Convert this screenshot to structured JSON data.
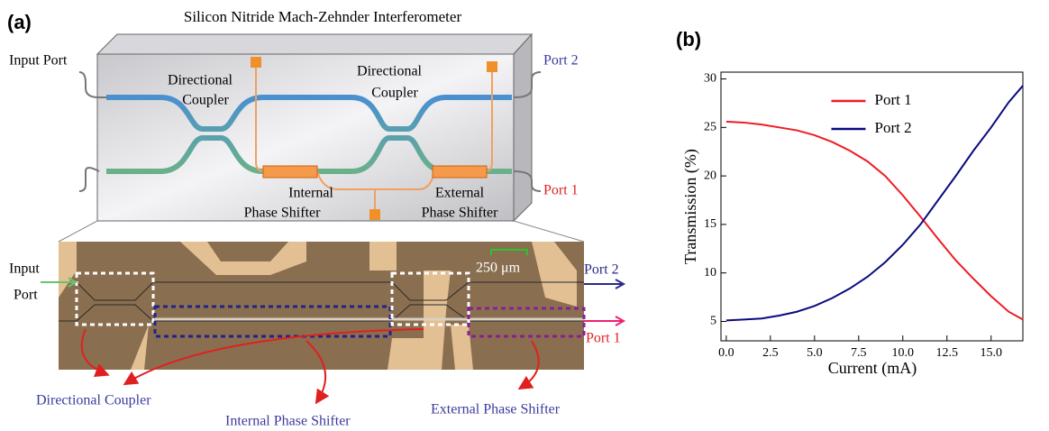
{
  "panel_a": {
    "label": "(a)",
    "title": "Silicon Nitride Mach-Zehnder Interferometer",
    "schematic": {
      "input_port": "Input Port",
      "port_2": "Port 2",
      "port_1": "Port 1",
      "couplers": [
        [
          "Directional",
          "Coupler"
        ],
        [
          "Directional",
          "Coupler"
        ]
      ],
      "internal_shifter": [
        "Internal",
        "Phase Shifter"
      ],
      "external_shifter": [
        "External",
        "Phase Shifter"
      ]
    },
    "micrograph": {
      "input_port": [
        "Input",
        "Port"
      ],
      "port_2": "Port 2",
      "port_1": "Port 1",
      "scale_bar": "250 μm",
      "callouts": [
        "Directional Coupler",
        "Internal Phase Shifter",
        "External Phase Shifter"
      ]
    }
  },
  "chart_data": {
    "type": "line",
    "panel_label": "(b)",
    "xlabel": "Current (mA)",
    "ylabel": "Transmission (%)",
    "x": [
      0,
      1,
      2,
      3,
      4,
      5,
      6,
      7,
      8,
      9,
      10,
      11,
      12,
      13,
      14,
      15,
      16,
      16.8
    ],
    "series": [
      {
        "name": "Port 1",
        "color": "#ee1c24",
        "values": [
          25.6,
          25.5,
          25.3,
          25.0,
          24.7,
          24.2,
          23.5,
          22.6,
          21.5,
          20.0,
          18.0,
          15.8,
          13.5,
          11.3,
          9.4,
          7.6,
          6.0,
          5.2
        ]
      },
      {
        "name": "Port 2",
        "color": "#0a0a80",
        "values": [
          5.1,
          5.2,
          5.3,
          5.6,
          6.0,
          6.6,
          7.4,
          8.4,
          9.6,
          11.1,
          12.9,
          15.0,
          17.5,
          20.0,
          22.6,
          25.0,
          27.6,
          29.3
        ]
      }
    ],
    "xlim": [
      -0.3,
      16.8
    ],
    "ylim": [
      3.0,
      30.7
    ],
    "xticks": [
      {
        "value": 0,
        "label": "0.0"
      },
      {
        "value": 2.5,
        "label": "2.5"
      },
      {
        "value": 5,
        "label": "5.0"
      },
      {
        "value": 7.5,
        "label": "7.5"
      },
      {
        "value": 10,
        "label": "10.0"
      },
      {
        "value": 12.5,
        "label": "12.5"
      },
      {
        "value": 15,
        "label": "15.0"
      }
    ],
    "yticks": [
      5,
      10,
      15,
      20,
      25,
      30
    ],
    "grid": false,
    "legend": "upper center"
  }
}
